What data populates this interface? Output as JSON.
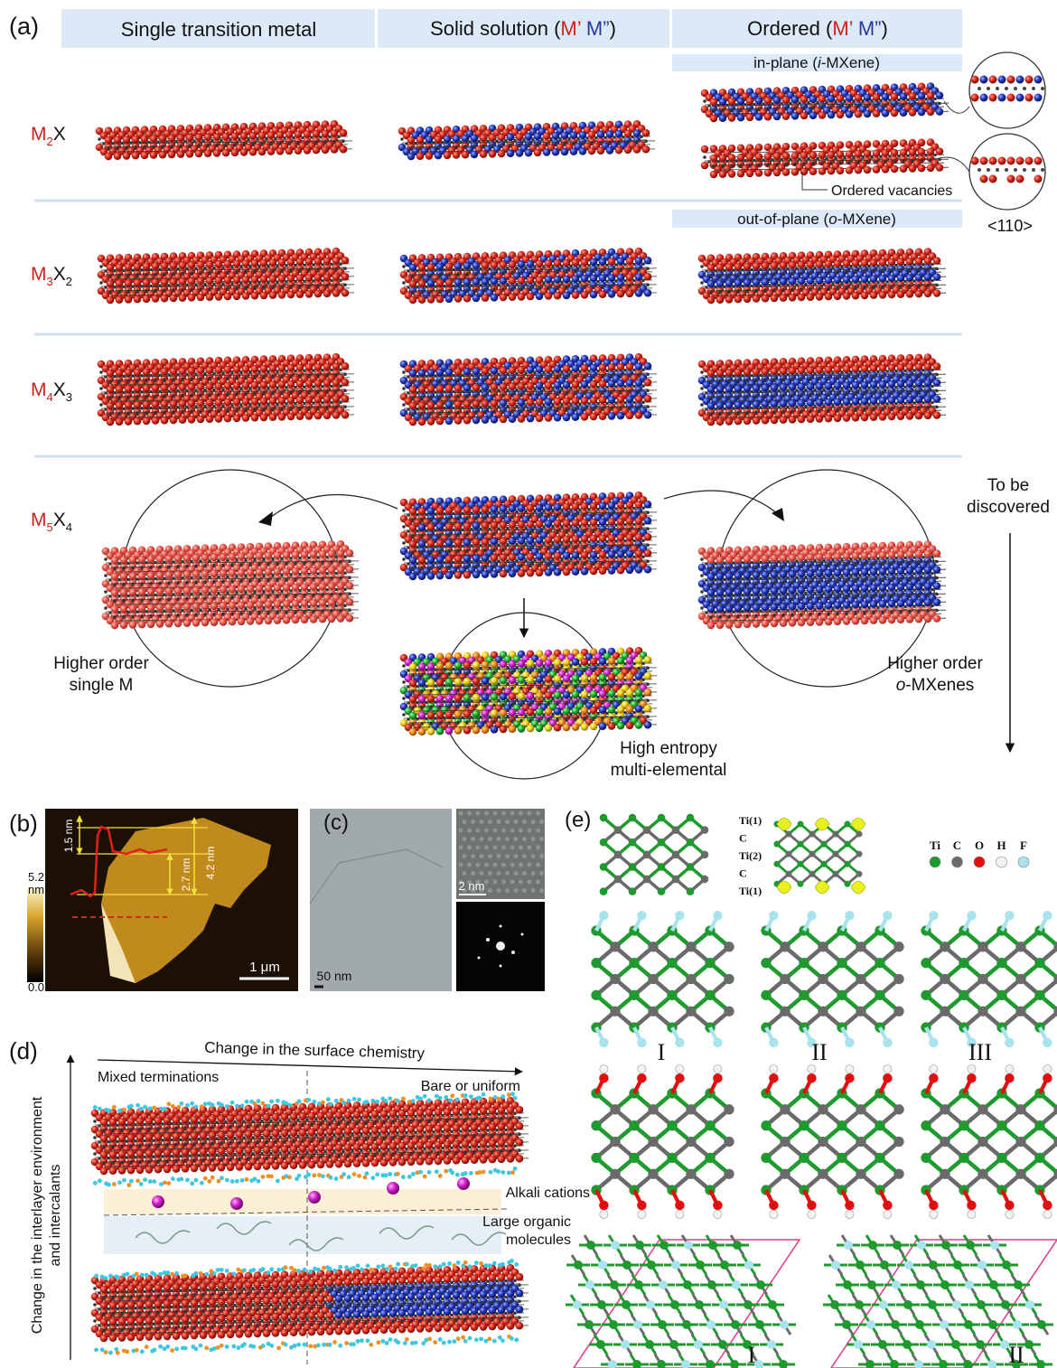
{
  "panel_a": {
    "label": "(a)",
    "headers": {
      "single": "Single transition metal",
      "solid": [
        "Solid solution (",
        "M’",
        " M”",
        ")"
      ],
      "ordered": [
        "Ordered (",
        "M’",
        " M”",
        ")"
      ]
    },
    "in_plane": [
      "in-plane (",
      "i",
      "-MXene)"
    ],
    "out_of_plane": [
      "out-of-plane (",
      "o",
      "-MXene)"
    ],
    "rows": [
      {
        "metal": "M",
        "metal_sub": "2",
        "nonmetal": "X"
      },
      {
        "metal": "M",
        "metal_sub": "3",
        "nonmetal": "X",
        "nonmetal_sub": "2"
      },
      {
        "metal": "M",
        "metal_sub": "4",
        "nonmetal": "X",
        "nonmetal_sub": "3"
      },
      {
        "metal": "M",
        "metal_sub": "5",
        "nonmetal": "X",
        "nonmetal_sub": "4"
      }
    ],
    "ordered_vacancies": "Ordered vacancies",
    "direction": "<110>",
    "to_be_discovered": [
      "To be",
      "discovered"
    ],
    "higher_single": [
      "Higher order",
      "single M"
    ],
    "higher_o": {
      "line1": "Higher order",
      "line2": [
        "o",
        "-MXenes"
      ]
    },
    "high_entropy": [
      "High entropy",
      "multi-elemental"
    ]
  },
  "panel_b": {
    "label": "(b)",
    "heights": [
      "1.5 nm",
      "2.7 nm",
      "4.2 nm"
    ],
    "scale_max": "5.2",
    "scale_unit": "nm",
    "scale_min": "0.0",
    "scale_bar": "1 μm"
  },
  "panel_c": {
    "label": "(c)",
    "inset_scale": "2 nm",
    "scale_bar": "50 nm"
  },
  "panel_d": {
    "label": "(d)",
    "x_axis": "Change in the surface chemistry",
    "left": "Mixed terminations",
    "right": "Bare or uniform",
    "y_axis": [
      "Change in the interlayer environment",
      "and intercalants"
    ],
    "alkali": "Alkali cations",
    "organic": [
      "Large organic",
      "molecules"
    ]
  },
  "panel_e": {
    "label": "(e)",
    "layers": [
      "Ti(1)",
      "C",
      "Ti(2)",
      "C",
      "Ti(1)"
    ],
    "legend": [
      "Ti",
      "C",
      "O",
      "H",
      "F"
    ],
    "legend_colors": [
      "#1f9a2e",
      "#6a6a6a",
      "#e01010",
      "#f2f2f2",
      "#a8e3ee"
    ],
    "configs": [
      "I",
      "II",
      "III"
    ],
    "top_views": [
      "I",
      "II"
    ]
  }
}
